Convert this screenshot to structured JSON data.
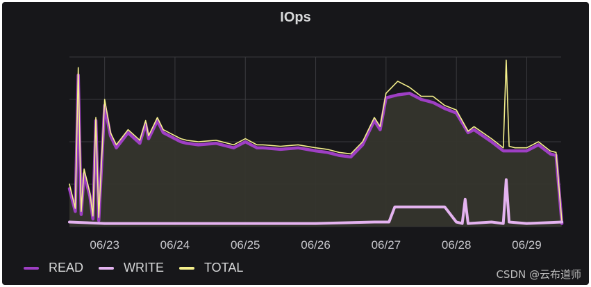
{
  "panel": {
    "title": "IOps"
  },
  "watermark": "CSDN @云布道师",
  "colors": {
    "read": "#9e3fc4",
    "write": "#e4b3f0",
    "total": "#f5f08c",
    "fill": "#35352d",
    "grid": "#3a3a3e",
    "background": "#17171a"
  },
  "chart_data": {
    "type": "line",
    "title": "IOps",
    "x_type": "date",
    "x_range": [
      "2023-06-22 12:00",
      "2023-06-29 12:00"
    ],
    "xticks": [
      "06/23",
      "06/24",
      "06/25",
      "06/26",
      "06/27",
      "06/28",
      "06/29"
    ],
    "y_scale": "unlabeled",
    "grid": true,
    "legend_position": "bottom-left",
    "series": [
      {
        "name": "READ",
        "color": "#9e3fc4",
        "x": [
          "06/22 12:00",
          "06/22 14:00",
          "06/22 15:00",
          "06/22 16:00",
          "06/22 17:00",
          "06/22 19:00",
          "06/22 20:00",
          "06/22 21:00",
          "06/22 22:00",
          "06/23 00:00",
          "06/23 02:00",
          "06/23 04:00",
          "06/23 08:00",
          "06/23 12:00",
          "06/23 14:00",
          "06/23 15:00",
          "06/23 16:00",
          "06/23 18:00",
          "06/23 20:00",
          "06/24 00:00",
          "06/24 02:00",
          "06/24 04:00",
          "06/24 08:00",
          "06/24 14:00",
          "06/24 20:00",
          "06/25 00:00",
          "06/25 04:00",
          "06/25 06:00",
          "06/25 12:00",
          "06/25 18:00",
          "06/26 00:00",
          "06/26 04:00",
          "06/26 08:00",
          "06/26 12:00",
          "06/26 16:00",
          "06/26 18:00",
          "06/26 20:00",
          "06/26 22:00",
          "06/27 00:00",
          "06/27 04:00",
          "06/27 08:00",
          "06/27 12:00",
          "06/27 16:00",
          "06/27 20:00",
          "06/28 00:00",
          "06/28 04:00",
          "06/28 06:00",
          "06/28 12:00",
          "06/28 16:00",
          "06/28 20:00",
          "06/29 00:00",
          "06/29 04:00",
          "06/29 08:00",
          "06/29 10:00",
          "06/29 12:00"
        ],
        "values": [
          25,
          10,
          100,
          8,
          35,
          20,
          5,
          70,
          4,
          80,
          60,
          52,
          62,
          55,
          68,
          58,
          62,
          70,
          62,
          58,
          56,
          55,
          54,
          55,
          52,
          56,
          52,
          52,
          51,
          52,
          50,
          49,
          47,
          46,
          54,
          62,
          70,
          64,
          85,
          87,
          88,
          84,
          82,
          78,
          75,
          62,
          64,
          56,
          50,
          50,
          50,
          54,
          48,
          47,
          2
        ]
      },
      {
        "name": "WRITE",
        "color": "#e4b3f0",
        "x": [
          "06/22 12:00",
          "06/23 00:00",
          "06/24 00:00",
          "06/25 00:00",
          "06/26 00:00",
          "06/26 20:00",
          "06/27 01:00",
          "06/27 03:00",
          "06/27 20:00",
          "06/28 00:00",
          "06/28 02:00",
          "06/28 03:00",
          "06/28 04:00",
          "06/28 12:00",
          "06/28 16:00",
          "06/28 17:00",
          "06/28 18:00",
          "06/29 00:00",
          "06/29 12:00"
        ],
        "values": [
          3,
          2,
          2,
          2,
          2,
          3,
          3,
          13,
          13,
          3,
          2,
          18,
          2,
          3,
          2,
          31,
          3,
          2,
          3
        ]
      },
      {
        "name": "TOTAL",
        "color": "#f5f08c",
        "x": [
          "06/22 12:00",
          "06/22 14:00",
          "06/22 15:00",
          "06/22 16:00",
          "06/22 17:00",
          "06/22 19:00",
          "06/22 20:00",
          "06/22 21:00",
          "06/22 22:00",
          "06/23 00:00",
          "06/23 02:00",
          "06/23 04:00",
          "06/23 08:00",
          "06/23 12:00",
          "06/23 14:00",
          "06/23 15:00",
          "06/23 16:00",
          "06/23 18:00",
          "06/23 20:00",
          "06/24 00:00",
          "06/24 02:00",
          "06/24 04:00",
          "06/24 08:00",
          "06/24 14:00",
          "06/24 20:00",
          "06/25 00:00",
          "06/25 04:00",
          "06/25 06:00",
          "06/25 12:00",
          "06/25 18:00",
          "06/26 00:00",
          "06/26 04:00",
          "06/26 08:00",
          "06/26 12:00",
          "06/26 16:00",
          "06/26 18:00",
          "06/26 20:00",
          "06/26 22:00",
          "06/27 00:00",
          "06/27 04:00",
          "06/27 08:00",
          "06/27 12:00",
          "06/27 16:00",
          "06/27 20:00",
          "06/28 00:00",
          "06/28 04:00",
          "06/28 06:00",
          "06/28 12:00",
          "06/28 16:00",
          "06/28 17:00",
          "06/28 18:00",
          "06/28 20:00",
          "06/29 00:00",
          "06/29 04:00",
          "06/29 08:00",
          "06/29 10:00",
          "06/29 12:00"
        ],
        "values": [
          28,
          12,
          105,
          10,
          38,
          22,
          7,
          72,
          6,
          84,
          62,
          54,
          64,
          57,
          70,
          60,
          64,
          72,
          64,
          60,
          58,
          57,
          56,
          57,
          54,
          58,
          54,
          54,
          53,
          54,
          52,
          51,
          49,
          48,
          56,
          64,
          72,
          66,
          88,
          96,
          92,
          86,
          86,
          80,
          77,
          63,
          66,
          58,
          52,
          110,
          53,
          52,
          52,
          56,
          50,
          49,
          3
        ]
      }
    ]
  }
}
